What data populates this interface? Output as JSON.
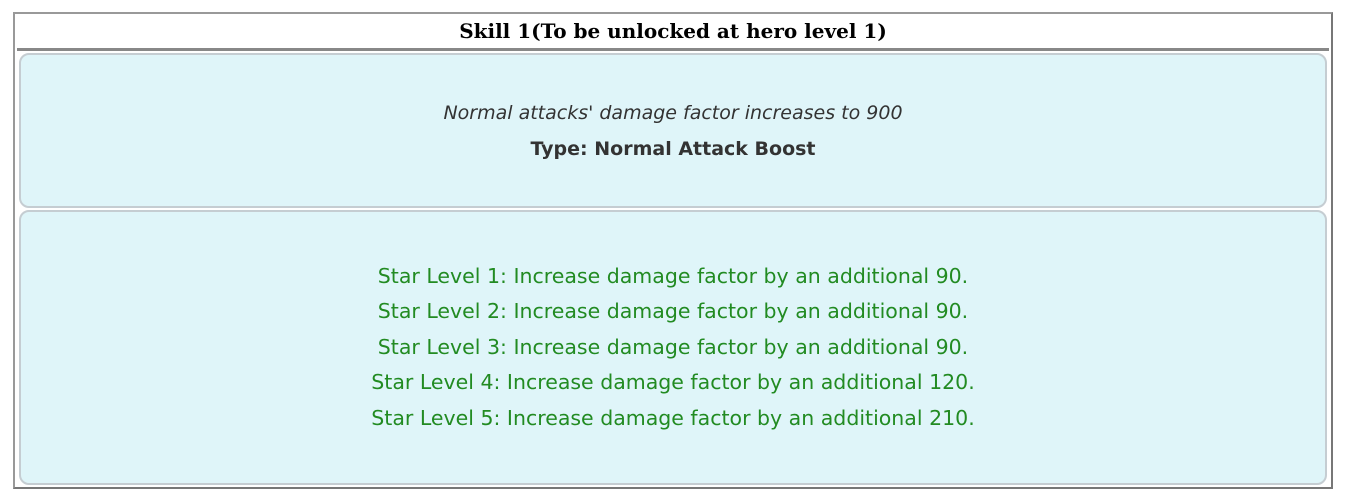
{
  "skill": {
    "title": "Skill 1(To be unlocked at hero level 1)",
    "description": "Normal attacks' damage factor increases to 900",
    "type": "Type: Normal Attack Boost",
    "star_levels": [
      "Star Level 1: Increase damage factor by an additional 90.",
      "Star Level 2: Increase damage factor by an additional 90.",
      "Star Level 3: Increase damage factor by an additional 90.",
      "Star Level 4: Increase damage factor by an additional 120.",
      "Star Level 5: Increase damage factor by an additional 210."
    ]
  },
  "colors": {
    "panel_bg": "#dff5f9",
    "star_text": "#228b22"
  }
}
